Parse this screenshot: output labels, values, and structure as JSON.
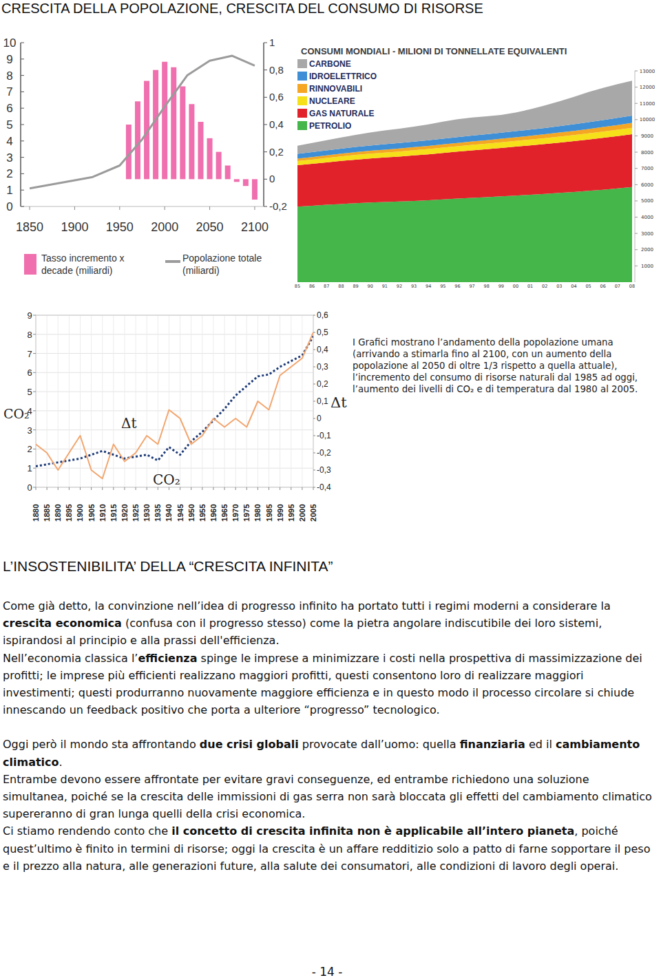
{
  "title": "CRESCITA DELLA POPOLAZIONE, CRESCITA DEL CONSUMO DI RISORSE",
  "chart_data": [
    {
      "type": "line",
      "series": [
        {
          "name": "Tasso incremento x decade (miliardi)",
          "type": "bar",
          "axis": "y2",
          "color": "#f06fae",
          "x": [
            1960,
            1970,
            1980,
            1990,
            2000,
            2010,
            2020,
            2030,
            2040,
            2050,
            2060,
            2070,
            2080,
            2090,
            2100
          ],
          "values": [
            0.4,
            0.57,
            0.72,
            0.8,
            0.86,
            0.82,
            0.68,
            0.55,
            0.42,
            0.3,
            0.2,
            0.1,
            -0.02,
            -0.05,
            -0.15
          ]
        },
        {
          "name": "Popolazione totale (miliardi)",
          "type": "line",
          "color": "#9b9b9b",
          "x": [
            1850,
            1900,
            1920,
            1950,
            1975,
            2000,
            2025,
            2050,
            2075,
            2100
          ],
          "values": [
            1.1,
            1.6,
            1.8,
            2.5,
            4.1,
            6.1,
            8.0,
            8.9,
            9.2,
            8.6
          ]
        }
      ],
      "xlim": [
        1840,
        2110
      ],
      "xticks": [
        1850,
        1900,
        1950,
        2000,
        2050,
        2100
      ],
      "ylim": [
        0,
        10
      ],
      "yticks": [
        0,
        1,
        2,
        3,
        4,
        5,
        6,
        7,
        8,
        9,
        10
      ],
      "y2lim": [
        -0.2,
        1
      ],
      "y2ticks": [
        {
          "value": -0.2,
          "label": "-0,2"
        },
        0,
        {
          "value": 0.2,
          "label": "0,2"
        },
        {
          "value": 0.4,
          "label": "0,4"
        },
        {
          "value": 0.6,
          "label": "0,6"
        },
        {
          "value": 0.8,
          "label": "0,8"
        },
        1
      ],
      "legend": "bottom"
    },
    {
      "type": "area",
      "title": "CONSUMI MONDIALI - MILIONI DI TONNELLATE EQUIVALENTI",
      "stacked": true,
      "categories": [
        "85",
        "86",
        "87",
        "88",
        "89",
        "90",
        "91",
        "92",
        "93",
        "94",
        "95",
        "96",
        "97",
        "98",
        "99",
        "00",
        "01",
        "02",
        "03",
        "04",
        "05",
        "06",
        "07",
        "08"
      ],
      "series": [
        {
          "name": "CARBONE",
          "color": "#a8a8a8",
          "values": [
            500,
            560,
            620,
            680,
            740,
            800,
            850,
            880,
            920,
            980,
            1050,
            1100,
            1120,
            1100,
            1090,
            1150,
            1250,
            1380,
            1520,
            1680,
            1850,
            1980,
            2080,
            2150
          ]
        },
        {
          "name": "IDROELETTRICO",
          "color": "#3f8fd6",
          "values": [
            300,
            305,
            310,
            315,
            320,
            325,
            330,
            335,
            340,
            345,
            350,
            355,
            360,
            365,
            370,
            375,
            380,
            390,
            400,
            410,
            420,
            430,
            440,
            450
          ]
        },
        {
          "name": "RINNOVABILI",
          "color": "#f5a623",
          "values": [
            150,
            155,
            160,
            165,
            170,
            175,
            180,
            185,
            190,
            195,
            200,
            205,
            210,
            215,
            220,
            225,
            230,
            240,
            250,
            260,
            270,
            280,
            290,
            300
          ]
        },
        {
          "name": "NUCLEARE",
          "color": "#f5e01a",
          "values": [
            250,
            260,
            270,
            280,
            290,
            300,
            305,
            310,
            315,
            320,
            325,
            330,
            335,
            340,
            345,
            350,
            355,
            360,
            365,
            370,
            375,
            385,
            390,
            400
          ]
        },
        {
          "name": "GAS NATURALE",
          "color": "#e2222b",
          "values": [
            2550,
            2580,
            2610,
            2650,
            2680,
            2710,
            2740,
            2770,
            2800,
            2830,
            2860,
            2890,
            2920,
            2950,
            2980,
            3010,
            3040,
            3070,
            3100,
            3130,
            3160,
            3190,
            3220,
            3250
          ]
        },
        {
          "name": "PETROLIO",
          "color": "#45b649",
          "values": [
            4650,
            4700,
            4760,
            4810,
            4860,
            4900,
            4930,
            4960,
            5000,
            5040,
            5090,
            5140,
            5190,
            5230,
            5280,
            5330,
            5380,
            5430,
            5490,
            5550,
            5620,
            5690,
            5770,
            5850
          ]
        }
      ],
      "ylim": [
        0,
        13000
      ],
      "yticks": [
        1000,
        2000,
        3000,
        4000,
        5000,
        6000,
        7000,
        8000,
        9000,
        10000,
        11000,
        12000,
        13000
      ],
      "legend": "top-left"
    },
    {
      "type": "line",
      "ylabel": "CO₂",
      "y2label": "Δt",
      "series": [
        {
          "name": "CO₂",
          "color": "#1f3c78",
          "line_style": "dotted",
          "x": [
            1880,
            1885,
            1890,
            1895,
            1900,
            1905,
            1910,
            1915,
            1920,
            1925,
            1930,
            1935,
            1940,
            1945,
            1950,
            1955,
            1960,
            1965,
            1970,
            1975,
            1980,
            1985,
            1990,
            1995,
            2000,
            2005
          ],
          "values": [
            1.1,
            1.2,
            1.3,
            1.4,
            1.5,
            1.7,
            1.9,
            1.7,
            1.5,
            1.6,
            1.7,
            1.4,
            2.1,
            1.7,
            2.4,
            2.9,
            3.5,
            4.1,
            4.8,
            5.3,
            5.8,
            5.9,
            6.3,
            6.6,
            6.9,
            7.9
          ]
        },
        {
          "name": "Δt",
          "color": "#f2a56e",
          "axis": "y2",
          "x": [
            1880,
            1885,
            1890,
            1895,
            1900,
            1905,
            1910,
            1915,
            1920,
            1925,
            1930,
            1935,
            1940,
            1945,
            1950,
            1955,
            1960,
            1965,
            1970,
            1975,
            1980,
            1985,
            1990,
            1995,
            2000,
            2005
          ],
          "values": [
            -0.15,
            -0.2,
            -0.3,
            -0.2,
            -0.1,
            -0.3,
            -0.35,
            -0.15,
            -0.25,
            -0.2,
            -0.1,
            -0.15,
            0.05,
            0,
            -0.15,
            -0.1,
            0,
            -0.05,
            0,
            -0.05,
            0.1,
            0.05,
            0.25,
            0.3,
            0.35,
            0.5
          ]
        }
      ],
      "xlim": [
        1880,
        2005
      ],
      "xticks": [
        1880,
        1885,
        1890,
        1895,
        1900,
        1905,
        1910,
        1915,
        1920,
        1925,
        1930,
        1935,
        1940,
        1945,
        1950,
        1955,
        1960,
        1965,
        1970,
        1975,
        1980,
        1985,
        1990,
        1995,
        2000,
        2005
      ],
      "ylim": [
        0,
        9
      ],
      "yticks": [
        0,
        1,
        2,
        3,
        4,
        5,
        6,
        7,
        8,
        9
      ],
      "y2lim": [
        -0.4,
        0.6
      ],
      "y2ticks": [
        {
          "value": -0.4,
          "label": "-0,4"
        },
        {
          "value": -0.3,
          "label": "-0,3"
        },
        {
          "value": -0.2,
          "label": "-0,2"
        },
        {
          "value": -0.1,
          "label": "-0,1"
        },
        0,
        {
          "value": 0.1,
          "label": "0,1"
        },
        {
          "value": 0.2,
          "label": "0,2"
        },
        {
          "value": 0.3,
          "label": "0,3"
        },
        {
          "value": 0.4,
          "label": "0,4"
        },
        {
          "value": 0.5,
          "label": "0,5"
        },
        {
          "value": 0.6,
          "label": "0,6"
        }
      ],
      "grid": true
    }
  ],
  "caption": "I Grafici mostrano l’andamento della popolazione umana (arrivando a stimarla fino al 2100, con un aumento della popolazione al 2050 di oltre 1/3 rispetto a quella attuale), l’incremento del consumo di risorse naturali dal 1985 ad oggi, l’aumento dei livelli di CO₂  e di temperatura dal 1980 al 2005.",
  "section": {
    "heading": "L’INSOSTENIBILITA’ DELLA “CRESCITA INFINITA”",
    "groups": [
      [
        {
          "runs": [
            {
              "text": "Come già detto, la convinzione nell’idea di progresso infinito ha portato tutti i regimi moderni a considerare la ",
              "bold": false
            },
            {
              "text": "crescita economica",
              "bold": true
            },
            {
              "text": " (confusa con il progresso stesso) come la pietra angolare indiscutibile dei loro sistemi, ispirandosi al principio e alla prassi dell'efficienza.",
              "bold": false
            }
          ]
        },
        {
          "runs": [
            {
              "text": "Nell’economia classica l’",
              "bold": false
            },
            {
              "text": "efficienza",
              "bold": true
            },
            {
              "text": " spinge le imprese a minimizzare i costi nella prospettiva di massimizzazione dei profitti; le imprese più efficienti realizzano maggiori profitti, questi consentono loro di realizzare maggiori investimenti; questi produrranno nuovamente maggiore efficienza e in questo modo il processo circolare si chiude innescando un feedback positivo che porta a ulteriore “progresso” tecnologico.",
              "bold": false
            }
          ]
        }
      ],
      [
        {
          "runs": [
            {
              "text": "Oggi però il mondo sta affrontando ",
              "bold": false
            },
            {
              "text": "due crisi globali",
              "bold": true
            },
            {
              "text": " provocate dall’uomo: quella ",
              "bold": false
            },
            {
              "text": "finanziaria",
              "bold": true
            },
            {
              "text": " ed il ",
              "bold": false
            },
            {
              "text": "cambiamento climatico",
              "bold": true
            },
            {
              "text": ".",
              "bold": false
            }
          ]
        },
        {
          "runs": [
            {
              "text": "Entrambe devono essere affrontate per evitare gravi conseguenze, ed entrambe richiedono una soluzione simultanea, poiché se la crescita delle immissioni di gas serra non sarà bloccata gli effetti del cambiamento climatico supereranno di gran lunga quelli della crisi economica.",
              "bold": false
            }
          ]
        },
        {
          "runs": [
            {
              "text": "Ci stiamo rendendo conto che ",
              "bold": false
            },
            {
              "text": "il concetto di crescita infinita non è applicabile all’intero pianeta",
              "bold": true
            },
            {
              "text": ", poiché quest’ultimo è finito in termini di risorse; oggi la crescita è un affare redditizio solo a patto di farne sopportare il peso e il prezzo alla natura, alle generazioni future, alla salute dei consumatori, alle condizioni di lavoro degli operai.",
              "bold": false
            }
          ]
        }
      ]
    ]
  },
  "page_number": "- 14 -"
}
